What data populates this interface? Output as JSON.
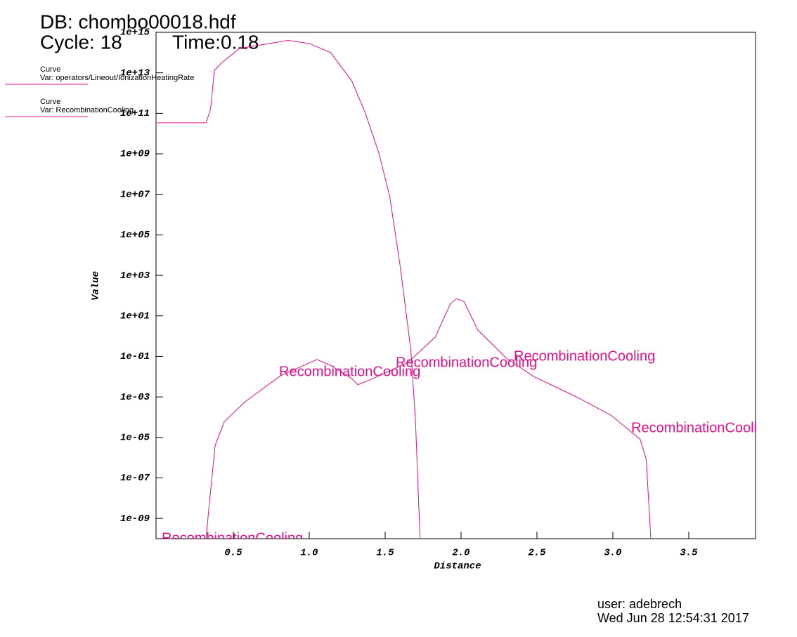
{
  "header": {
    "db": "DB: chombo00018.hdf",
    "cycle": "Cycle: 18",
    "time": "Time:0.18"
  },
  "footer": {
    "user": "user: adebrech",
    "date": "Wed Jun 28 12:54:31 2017"
  },
  "chart_data": {
    "type": "line",
    "x_label": "Distance",
    "y_label": "Value",
    "xlim": [
      0,
      3.94
    ],
    "ylim": [
      1e-10,
      1000000000000000.0
    ],
    "y_scale": "log",
    "xticks": [
      0.5,
      {
        "value": 1,
        "label": "1.0"
      },
      1.5,
      {
        "value": 2,
        "label": "2.0"
      },
      2.5,
      {
        "value": 3,
        "label": "3.0"
      },
      3.5
    ],
    "yticks": [
      {
        "value": 1000000000000000.0,
        "label": "1e+15"
      },
      {
        "value": 10000000000000.0,
        "label": "1e+13"
      },
      {
        "value": 100000000000.0,
        "label": "1e+11"
      },
      {
        "value": 1000000000.0,
        "label": "1e+09"
      },
      {
        "value": 10000000.0,
        "label": "1e+07"
      },
      {
        "value": 100000.0,
        "label": "1e+05"
      },
      {
        "value": 1000.0,
        "label": "1e+03"
      },
      {
        "value": 10,
        "label": "1e+01"
      },
      {
        "value": 0.1,
        "label": "1e-01"
      },
      {
        "value": 0.001,
        "label": "1e-03"
      },
      {
        "value": 1e-05,
        "label": "1e-05"
      },
      {
        "value": 1e-07,
        "label": "1e-07"
      },
      {
        "value": 1e-09,
        "label": "1e-09"
      }
    ],
    "series": [
      {
        "legend_label": "Curve",
        "name": "Var: operators/Lineout/IonizationHeatingRate",
        "color": "#e0108a",
        "x": [
          0,
          0.32,
          0.35,
          0.375,
          0.42,
          0.54,
          0.86,
          1.0,
          1.14,
          1.28,
          1.37,
          1.46,
          1.53,
          1.6,
          1.67,
          1.7,
          1.73
        ],
        "values": [
          34000000000.0,
          34000000000.0,
          160000000000.0,
          13000000000000.0,
          30000000000000.0,
          160000000000000.0,
          400000000000000.0,
          280000000000000.0,
          100000000000000.0,
          4000000000000.0,
          100000000000.0,
          1000000000.0,
          8000000.0,
          2500.0,
          0.18,
          6e-05,
          1e-10
        ]
      },
      {
        "legend_label": "Curve",
        "name": "Var: RecombinationCooling",
        "color": "#e0108a",
        "label": "RecombinationCooling",
        "x": [
          0.32,
          0.34,
          0.38,
          0.44,
          0.58,
          0.81,
          1.05,
          1.14,
          1.28,
          1.32,
          1.42,
          1.65,
          1.83,
          1.93,
          1.97,
          2.02,
          2.11,
          2.3,
          2.48,
          2.76,
          2.99,
          3.18,
          3.22,
          3.25
        ],
        "values": [
          1e-10,
          4e-09,
          4e-06,
          6e-05,
          0.0006,
          0.011,
          0.07,
          0.036,
          0.008,
          0.004,
          0.008,
          0.05,
          0.9,
          40,
          70,
          50,
          2,
          0.08,
          0.01,
          0.001,
          0.00012,
          8e-06,
          8e-07,
          1e-10
        ]
      }
    ]
  }
}
